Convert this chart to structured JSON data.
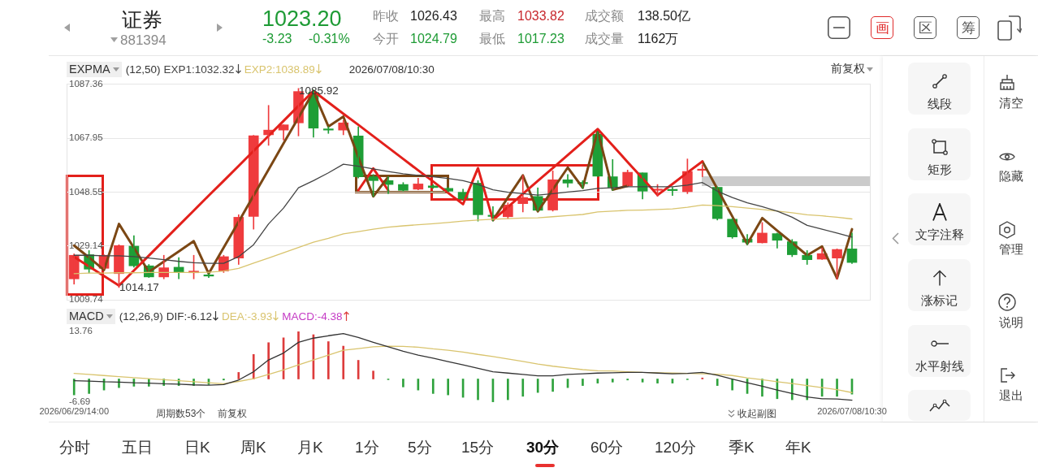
{
  "chart_data": [
    {
      "type": "other",
      "title": "证券",
      "subtitle": "881394",
      "annotations": [
        "1023.20",
        "-3.23",
        "-0.31%",
        "昨收",
        "1026.43",
        "今开",
        "1024.79",
        "最高",
        "1033.82",
        "最低",
        "1017.23",
        "成交额",
        "138.50亿",
        "成交量",
        "1162万",
        "画",
        "区",
        "筹"
      ]
    },
    {
      "type": "candlestick",
      "legend_title": "EXPMA",
      "legend": "top left",
      "grid": "y",
      "tick_labels": "y",
      "categories": [
        null,
        null,
        null,
        null,
        null,
        null,
        null,
        null,
        null,
        null,
        null,
        null,
        null,
        null,
        null,
        null,
        null,
        null,
        null,
        null,
        null,
        null,
        null,
        null,
        null,
        null,
        null,
        null,
        null,
        null,
        null,
        null,
        null,
        null,
        null,
        null,
        null,
        null,
        null,
        null,
        null,
        null,
        null,
        null,
        null,
        null,
        null,
        null,
        null,
        null,
        null,
        null,
        null
      ],
      "ohlc": [
        [
          1017.3,
          1026.3,
          1015.4,
          1025.8
        ],
        [
          1026.0,
          1027.5,
          1019.4,
          1020.8
        ],
        [
          1021.1,
          1026.0,
          1020.9,
          1025.8
        ],
        [
          1019.2,
          1029.6,
          1014.17,
          1029.3
        ],
        [
          1029.1,
          1032.9,
          1021.5,
          1022.0
        ],
        [
          1022.0,
          1022.5,
          1017.8,
          1018.0
        ],
        [
          1018.0,
          1025.8,
          1017.3,
          1021.3
        ],
        [
          1021.5,
          1025.0,
          1017.3,
          1019.8
        ],
        [
          1019.5,
          1025.8,
          1017.3,
          1020.1
        ],
        [
          1018.7,
          1019.2,
          1017.8,
          1018.3
        ],
        [
          1020.1,
          1025.8,
          1019.6,
          1025.3
        ],
        [
          1024.8,
          1040.4,
          1022.5,
          1039.5
        ],
        [
          1039.8,
          1069.0,
          1035.2,
          1068.9
        ],
        [
          1069.2,
          1079.8,
          1065.4,
          1070.9
        ],
        [
          1070.9,
          1072.8,
          1067.3,
          1072.8
        ],
        [
          1073.5,
          1085.92,
          1068.8,
          1084.8
        ],
        [
          1084.5,
          1085.4,
          1068.3,
          1071.6
        ],
        [
          1071.0,
          1072.1,
          1069.7,
          1070.9
        ],
        [
          1070.9,
          1074.4,
          1069.2,
          1073.5
        ],
        [
          1068.8,
          1072.1,
          1053.6,
          1054.1
        ],
        [
          1054.1,
          1054.9,
          1047.0,
          1052.7
        ],
        [
          1052.7,
          1054.1,
          1048.0,
          1051.3
        ],
        [
          1051.3,
          1052.0,
          1048.9,
          1049.2
        ],
        [
          1049.6,
          1053.6,
          1049.4,
          1051.5
        ],
        [
          1050.8,
          1051.3,
          1049.9,
          1050.2
        ],
        [
          1049.9,
          1050.3,
          1048.7,
          1048.9
        ],
        [
          1048.5,
          1049.6,
          1045.6,
          1046.1
        ],
        [
          1051.8,
          1052.7,
          1038.1,
          1040.4
        ],
        [
          1040.0,
          1043.3,
          1038.1,
          1039.8
        ],
        [
          1039.7,
          1044.7,
          1039.0,
          1043.9
        ],
        [
          1044.4,
          1054.6,
          1041.4,
          1046.6
        ],
        [
          1047.0,
          1050.1,
          1041.8,
          1042.0
        ],
        [
          1042.1,
          1056.2,
          1041.7,
          1053.0
        ],
        [
          1053.0,
          1054.9,
          1050.3,
          1051.8
        ],
        [
          1051.9,
          1052.7,
          1049.9,
          1051.6
        ],
        [
          1069.4,
          1070.4,
          1054.1,
          1054.3
        ],
        [
          1054.1,
          1060.3,
          1049.2,
          1050.3
        ],
        [
          1050.8,
          1056.5,
          1050.5,
          1055.7
        ],
        [
          1055.5,
          1055.5,
          1046.1,
          1048.9
        ],
        [
          1049.2,
          1051.3,
          1047.0,
          1049.6
        ],
        [
          1049.3,
          1050.3,
          1047.3,
          1049.1
        ],
        [
          1048.7,
          1060.5,
          1048.0,
          1056.0
        ],
        [
          1056.4,
          1058.4,
          1054.1,
          1056.7
        ],
        [
          1050.3,
          1050.5,
          1038.5,
          1039.0
        ],
        [
          1038.8,
          1039.0,
          1031.9,
          1032.4
        ],
        [
          1031.6,
          1033.3,
          1029.6,
          1030.5
        ],
        [
          1030.3,
          1037.6,
          1030.2,
          1033.8
        ],
        [
          1033.6,
          1033.8,
          1028.4,
          1031.2
        ],
        [
          1030.7,
          1031.5,
          1025.3,
          1026.0
        ],
        [
          1025.8,
          1027.5,
          1022.5,
          1024.2
        ],
        [
          1024.4,
          1028.4,
          1024.3,
          1026.4
        ],
        [
          1024.8,
          1028.1,
          1017.2,
          1027.9
        ],
        [
          1028.1,
          1033.8,
          1022.8,
          1023.2
        ]
      ],
      "colors": [
        "#ef3b3d",
        "#1e9e36",
        "#ef3b3d",
        "#ef3b3d",
        "#1e9e36",
        "#1e9e36",
        "#ef3b3d",
        "#1e9e36",
        "#ef3b3d",
        "#1e9e36",
        "#ef3b3d",
        "#ef3b3d",
        "#ef3b3d",
        "#ef3b3d",
        "#ef3b3d",
        "#ef3b3d",
        "#1e9e36",
        "#1e9e36",
        "#ef3b3d",
        "#1e9e36",
        "#1e9e36",
        "#1e9e36",
        "#1e9e36",
        "#ef3b3d",
        "#1e9e36",
        "#1e9e36",
        "#1e9e36",
        "#1e9e36",
        "#1e9e36",
        "#ef3b3d",
        "#ef3b3d",
        "#1e9e36",
        "#ef3b3d",
        "#1e9e36",
        "#1e9e36",
        "#1e9e36",
        "#1e9e36",
        "#ef3b3d",
        "#1e9e36",
        "#ef3b3d",
        "#1e9e36",
        "#ef3b3d",
        "#ef3b3d",
        "#1e9e36",
        "#1e9e36",
        "#1e9e36",
        "#ef3b3d",
        "#1e9e36",
        "#1e9e36",
        "#1e9e36",
        "#ef3b3d",
        "#ef3b3d",
        "#1e9e36"
      ],
      "ylim": [
        1009.74,
        1087.36
      ],
      "yticks": [
        1009.74,
        1029.14,
        1048.55,
        1067.95,
        1087.36
      ],
      "series": [
        {
          "name": "EXP1:1032.32",
          "type": "line",
          "color": "#444444",
          "values": [
            1025.8,
            1025.8,
            1025.6,
            1025.6,
            1025.3,
            1024.8,
            1024.2,
            1023.6,
            1023.1,
            1022.9,
            1022.9,
            1025.3,
            1029.6,
            1037.1,
            1042.8,
            1050.1,
            1052.7,
            1055.5,
            1058.6,
            1057.9,
            1056.9,
            1056.0,
            1055.2,
            1054.6,
            1054.1,
            1053.5,
            1052.7,
            1051.3,
            1049.4,
            1048.5,
            1048.0,
            1047.5,
            1048.0,
            1048.6,
            1049.1,
            1049.9,
            1050.1,
            1050.5,
            1050.5,
            1050.5,
            1050.5,
            1051.1,
            1052.0,
            1048.9,
            1046.6,
            1044.7,
            1043.3,
            1041.7,
            1039.5,
            1036.6,
            1035.2,
            1033.8,
            1032.32
          ]
        },
        {
          "name": "EXP2:1038.89",
          "type": "line",
          "color": "#d9c46e",
          "values": [
            1019.2,
            1019.4,
            1019.4,
            1019.5,
            1019.5,
            1019.6,
            1019.6,
            1019.6,
            1019.6,
            1019.7,
            1020.1,
            1021.1,
            1023.0,
            1024.8,
            1026.7,
            1028.6,
            1030.5,
            1031.9,
            1033.5,
            1034.3,
            1035.2,
            1035.9,
            1036.4,
            1036.8,
            1037.2,
            1037.6,
            1038.1,
            1038.5,
            1038.8,
            1039.0,
            1039.2,
            1039.3,
            1039.7,
            1040.1,
            1040.5,
            1041.4,
            1041.7,
            1042.0,
            1042.1,
            1042.3,
            1042.5,
            1043.1,
            1043.9,
            1043.7,
            1043.3,
            1042.8,
            1042.3,
            1041.7,
            1041.1,
            1040.4,
            1040.0,
            1039.5,
            1038.89
          ]
        },
        {
          "type": "line",
          "color": "#e3201b",
          "values": [
            1025.2,
            1021.8,
            1018.3,
            1014.9,
            1020.3,
            1025.7,
            1031.1,
            1036.5,
            1041.9,
            1047.3,
            1052.6,
            1058.0,
            1063.4,
            1068.8,
            1074.2,
            1079.6,
            1085.0,
            1080.9,
            1076.8,
            1072.8,
            1068.7,
            1064.6,
            1060.5,
            1056.4,
            1052.4,
            1048.3,
            1044.2,
            1057.2,
            1038.5,
            1043.2,
            1047.9,
            1052.6,
            1057.2,
            1061.9,
            1066.6,
            1071.3,
            1065.4,
            1059.4,
            1053.5,
            1047.5,
            1051.5,
            1055.6,
            1059.6,
            null,
            null,
            null,
            null,
            null,
            null,
            null,
            null,
            null,
            null
          ]
        },
        {
          "type": "line",
          "color": "#7b4714",
          "values": [
            1029.3,
            1025.0,
            1020.5,
            1037.1,
            1028.5,
            1019.8,
            1023.5,
            1027.2,
            1030.9,
            1019.2,
            1028.6,
            1037.9,
            1047.3,
            1056.7,
            1066.1,
            1075.4,
            1084.8,
            1072.2,
            1075.8,
            1061.1,
            1047.0,
            1054.1,
            null,
            null,
            null,
            null,
            null,
            null,
            1038.5,
            1046.6,
            1054.6,
            1041.6,
            1049.5,
            1057.4,
            1050.1,
            1070.6,
            1049.4,
            1050.8,
            null,
            null,
            null,
            null,
            1059.6,
            1049.7,
            1039.8,
            1029.9,
            1039.2,
            1034.7,
            1030.3,
            1025.8,
            1029.0,
            1017.5,
            1035.2
          ]
        },
        {
          "type": "line",
          "color": "#e3201b",
          "values": [
            null,
            null,
            null,
            null,
            null,
            null,
            null,
            null,
            null,
            null,
            null,
            null,
            null,
            null,
            null,
            null,
            null,
            null,
            null,
            1049.2,
            1057.1,
            1049.2,
            null,
            null,
            null,
            null,
            null,
            null,
            null,
            null,
            null,
            null,
            null,
            null,
            null,
            null,
            null,
            null,
            null,
            null,
            null,
            null,
            null,
            null,
            null,
            null,
            null,
            null,
            null,
            null,
            null,
            null,
            null
          ]
        }
      ],
      "annotations": [
        "(12,50)",
        "2026/07/08/10:30",
        "前复权",
        "1085.92",
        "1014.17"
      ]
    },
    {
      "type": "bar",
      "legend_title": "MACD",
      "legend": "top left",
      "categories": [
        "2026/06/29/14:00",
        null,
        null,
        null,
        null,
        null,
        null,
        null,
        null,
        null,
        null,
        null,
        null,
        null,
        null,
        null,
        null,
        null,
        null,
        null,
        null,
        null,
        null,
        null,
        null,
        null,
        null,
        null,
        null,
        null,
        null,
        null,
        null,
        null,
        null,
        null,
        null,
        null,
        null,
        null,
        null,
        null,
        null,
        null,
        null,
        null,
        null,
        null,
        null,
        null,
        null,
        null,
        "2026/07/08/10:30"
      ],
      "ylim": [
        -6.69,
        13.76
      ],
      "yticks": [
        -6.69,
        13.76
      ],
      "series": [
        {
          "name": "DIF:-6.12",
          "type": "line",
          "color": "#333333",
          "values": [
            -0.5,
            -0.6,
            -0.8,
            -0.9,
            -1.1,
            -1.2,
            -1.4,
            -1.5,
            -1.7,
            -1.8,
            -1.6,
            -0.3,
            2.1,
            5.5,
            7.5,
            10.6,
            11.8,
            12.5,
            13.1,
            12.0,
            10.6,
            9.3,
            8.0,
            6.9,
            6.0,
            5.0,
            4.1,
            3.1,
            2.1,
            1.7,
            1.3,
            0.9,
            0.9,
            1.3,
            1.5,
            1.7,
            1.8,
            1.9,
            1.9,
            1.7,
            1.5,
            1.6,
            1.9,
            1.1,
            0.0,
            -1.1,
            -2.1,
            -3.2,
            -4.2,
            -5.2,
            -5.7,
            -5.8,
            -6.12
          ]
        },
        {
          "name": "DEA:-3.93",
          "type": "line",
          "color": "#d9c46e",
          "values": [
            1.6,
            1.3,
            1.0,
            0.7,
            0.4,
            0.1,
            -0.2,
            -0.5,
            -0.8,
            -1.1,
            -1.4,
            -0.7,
            0.1,
            1.3,
            2.6,
            4.1,
            5.5,
            6.9,
            8.3,
            8.8,
            9.3,
            9.5,
            9.4,
            9.2,
            8.7,
            8.3,
            7.8,
            7.1,
            6.5,
            5.8,
            5.1,
            4.3,
            3.7,
            3.2,
            2.7,
            2.4,
            2.3,
            2.1,
            1.9,
            1.8,
            1.7,
            1.6,
            1.5,
            1.4,
            1.0,
            0.3,
            -0.2,
            -0.8,
            -1.3,
            -1.9,
            -2.5,
            -3.1,
            -3.93
          ]
        },
        {
          "name": "MACD:-4.38",
          "color": "#c53cc5",
          "values": [
            -4.6,
            -4.2,
            -3.2,
            -2.5,
            -2.1,
            -2.1,
            -1.9,
            -1.9,
            -1.9,
            -1.6,
            -0.3,
            1.9,
            7.1,
            10.5,
            11.9,
            13.7,
            12.8,
            10.8,
            9.5,
            5.4,
            2.3,
            -0.2,
            -2.3,
            -3.2,
            -4.2,
            -4.6,
            -5.3,
            -6.0,
            -6.6,
            -6.0,
            -5.0,
            -3.9,
            -3.6,
            -2.5,
            -1.9,
            -1.2,
            -0.9,
            -0.3,
            -0.9,
            -1.2,
            -1.2,
            -0.2,
            0.3,
            -1.9,
            -3.2,
            -4.2,
            -5.0,
            -5.7,
            -6.0,
            -6.0,
            -5.0,
            -5.0,
            -4.38
          ],
          "colors": [
            "#2ea23c",
            "#2ea23c",
            "#2ea23c",
            "#2ea23c",
            "#2ea23c",
            "#2ea23c",
            "#2ea23c",
            "#2ea23c",
            "#2ea23c",
            "#2ea23c",
            "#2ea23c",
            "#dd3c3c",
            "#dd3c3c",
            "#dd3c3c",
            "#dd3c3c",
            "#dd3c3c",
            "#dd3c3c",
            "#dd3c3c",
            "#dd3c3c",
            "#dd3c3c",
            "#dd3c3c",
            "#2ea23c",
            "#2ea23c",
            "#2ea23c",
            "#2ea23c",
            "#2ea23c",
            "#2ea23c",
            "#2ea23c",
            "#2ea23c",
            "#2ea23c",
            "#2ea23c",
            "#2ea23c",
            "#2ea23c",
            "#2ea23c",
            "#2ea23c",
            "#2ea23c",
            "#2ea23c",
            "#2ea23c",
            "#2ea23c",
            "#2ea23c",
            "#2ea23c",
            "#2ea23c",
            "#dd3c3c",
            "#2ea23c",
            "#2ea23c",
            "#2ea23c",
            "#2ea23c",
            "#2ea23c",
            "#2ea23c",
            "#2ea23c",
            "#2ea23c",
            "#2ea23c",
            "#2ea23c"
          ]
        }
      ],
      "annotations": [
        "(12,26,9)",
        "周期数53个",
        "前复权",
        "收起副图"
      ]
    },
    {
      "type": "other",
      "annotations": [
        "线段",
        "矩形",
        "文字注释",
        "涨标记",
        "水平射线",
        "清空",
        "隐藏",
        "管理",
        "说明",
        "退出"
      ]
    },
    {
      "type": "other",
      "annotations": [
        "分时",
        "五日",
        "日K",
        "周K",
        "月K",
        "1分",
        "5分",
        "15分",
        "30分",
        "60分",
        "120分",
        "季K",
        "年K"
      ]
    }
  ]
}
